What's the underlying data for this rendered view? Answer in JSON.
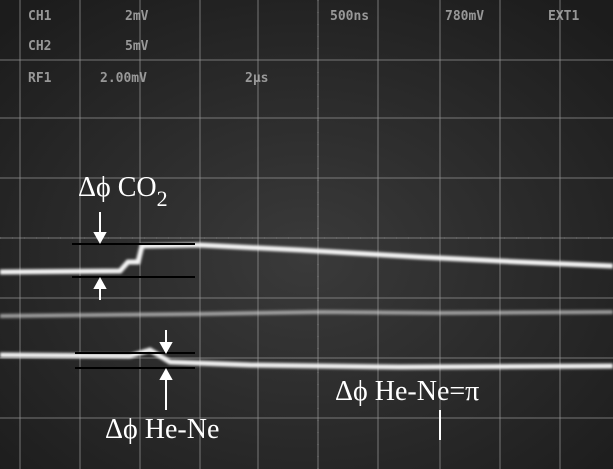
{
  "screen_readouts": {
    "row1": [
      "CH1",
      "2mV",
      "500ns",
      "780mV",
      "EXT1"
    ],
    "row2": [
      "CH2",
      "5mV"
    ],
    "row3": [
      "RF1",
      "2.00mV",
      "2µs"
    ]
  },
  "annotations": {
    "co2": {
      "symbol": "Δϕ CO",
      "subscript": "2"
    },
    "he_ne": "Δϕ He-Ne",
    "he_ne_pi": "Δϕ He-Ne=π"
  }
}
